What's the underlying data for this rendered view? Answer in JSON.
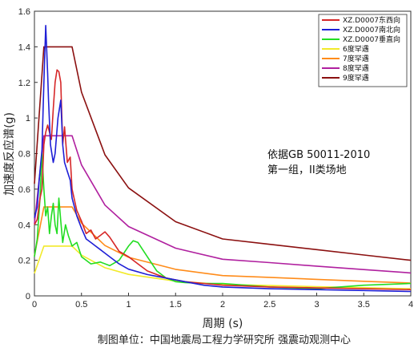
{
  "chart_data": {
    "type": "line",
    "xlabel": "周期 (s)",
    "ylabel": "加速度反应谱(g)",
    "xlim": [
      0,
      4
    ],
    "ylim": [
      0,
      1.6
    ],
    "x_ticks": [
      "0",
      "0.5",
      "1",
      "1.5",
      "2",
      "2.5",
      "3",
      "3.5",
      "4"
    ],
    "y_ticks": [
      "0",
      "0.2",
      "0.4",
      "0.6",
      "0.8",
      "1",
      "1.2",
      "1.4",
      "1.6"
    ],
    "grid": false,
    "legend_position": "top-right",
    "annotation": [
      "依据GB 50011-2010",
      "第一组，II类场地"
    ],
    "caption": "制图单位：中国地震局工程力学研究所 强震动观测中心",
    "series": [
      {
        "name": "XZ.D0007东西向",
        "color": "#d62728",
        "x": [
          0,
          0.03,
          0.06,
          0.08,
          0.1,
          0.12,
          0.14,
          0.16,
          0.18,
          0.2,
          0.22,
          0.24,
          0.26,
          0.28,
          0.3,
          0.32,
          0.35,
          0.38,
          0.4,
          0.45,
          0.5,
          0.55,
          0.6,
          0.65,
          0.7,
          0.75,
          0.8,
          0.9,
          1.0,
          1.1,
          1.2,
          1.3,
          1.4,
          1.5,
          1.6,
          1.8,
          2.0,
          2.5,
          3.0,
          3.5,
          4.0
        ],
        "values": [
          0.4,
          0.43,
          0.55,
          0.6,
          0.85,
          0.92,
          0.96,
          0.92,
          0.88,
          1.05,
          1.2,
          1.27,
          1.26,
          1.2,
          0.85,
          0.95,
          0.75,
          0.78,
          0.6,
          0.48,
          0.42,
          0.35,
          0.37,
          0.32,
          0.34,
          0.36,
          0.33,
          0.25,
          0.22,
          0.18,
          0.14,
          0.12,
          0.1,
          0.09,
          0.08,
          0.07,
          0.06,
          0.05,
          0.045,
          0.04,
          0.035
        ]
      },
      {
        "name": "XZ.D0007南北向",
        "color": "#1f1fd6",
        "x": [
          0,
          0.03,
          0.05,
          0.08,
          0.1,
          0.12,
          0.14,
          0.15,
          0.17,
          0.2,
          0.22,
          0.25,
          0.28,
          0.3,
          0.32,
          0.35,
          0.38,
          0.4,
          0.45,
          0.5,
          0.55,
          0.6,
          0.65,
          0.7,
          0.8,
          0.9,
          1.0,
          1.2,
          1.4,
          1.6,
          1.8,
          2.0,
          2.5,
          3.0,
          3.5,
          4.0
        ],
        "values": [
          0.44,
          0.5,
          0.65,
          0.82,
          1.2,
          1.52,
          1.25,
          1.1,
          0.85,
          0.75,
          0.8,
          1.0,
          1.1,
          0.85,
          0.75,
          0.7,
          0.65,
          0.55,
          0.45,
          0.38,
          0.32,
          0.3,
          0.28,
          0.26,
          0.22,
          0.18,
          0.15,
          0.12,
          0.1,
          0.08,
          0.06,
          0.05,
          0.04,
          0.035,
          0.03,
          0.025
        ]
      },
      {
        "name": "XZ.D0007垂直向",
        "color": "#22dd22",
        "x": [
          0,
          0.03,
          0.06,
          0.08,
          0.1,
          0.12,
          0.14,
          0.16,
          0.18,
          0.2,
          0.22,
          0.24,
          0.26,
          0.28,
          0.3,
          0.33,
          0.36,
          0.4,
          0.45,
          0.5,
          0.55,
          0.6,
          0.7,
          0.8,
          0.9,
          1.0,
          1.05,
          1.1,
          1.2,
          1.3,
          1.4,
          1.5,
          1.6,
          1.8,
          2.0,
          2.5,
          3.0,
          3.5,
          4.0
        ],
        "values": [
          0.22,
          0.32,
          0.55,
          0.8,
          0.6,
          0.45,
          0.5,
          0.35,
          0.45,
          0.52,
          0.4,
          0.35,
          0.55,
          0.42,
          0.3,
          0.4,
          0.34,
          0.28,
          0.3,
          0.22,
          0.2,
          0.18,
          0.19,
          0.17,
          0.2,
          0.28,
          0.31,
          0.3,
          0.22,
          0.14,
          0.1,
          0.08,
          0.075,
          0.07,
          0.07,
          0.05,
          0.04,
          0.06,
          0.07
        ]
      },
      {
        "name": "6度罕遇",
        "color": "#f2ea2a",
        "x": [
          0,
          0.1,
          0.4,
          0.5,
          0.75,
          1.0,
          1.5,
          2.0,
          2.5,
          3.0,
          3.5,
          4.0
        ],
        "values": [
          0.126,
          0.28,
          0.28,
          0.229,
          0.158,
          0.121,
          0.083,
          0.064,
          0.058,
          0.052,
          0.046,
          0.04
        ]
      },
      {
        "name": "7度罕遇",
        "color": "#ff8c1a",
        "x": [
          0,
          0.1,
          0.4,
          0.5,
          0.75,
          1.0,
          1.5,
          2.0,
          2.5,
          3.0,
          3.5,
          4.0
        ],
        "values": [
          0.225,
          0.5,
          0.5,
          0.409,
          0.283,
          0.217,
          0.149,
          0.114,
          0.104,
          0.093,
          0.082,
          0.072
        ]
      },
      {
        "name": "8度罕遇",
        "color": "#b0209f",
        "x": [
          0,
          0.1,
          0.4,
          0.5,
          0.75,
          1.0,
          1.5,
          2.0,
          2.5,
          3.0,
          3.5,
          4.0
        ],
        "values": [
          0.405,
          0.9,
          0.9,
          0.736,
          0.51,
          0.39,
          0.268,
          0.206,
          0.187,
          0.167,
          0.148,
          0.129
        ]
      },
      {
        "name": "9度罕遇",
        "color": "#8b1010",
        "x": [
          0,
          0.1,
          0.4,
          0.5,
          0.75,
          1.0,
          1.5,
          2.0,
          2.5,
          3.0,
          3.5,
          4.0
        ],
        "values": [
          0.63,
          1.4,
          1.4,
          1.145,
          0.793,
          0.607,
          0.417,
          0.32,
          0.29,
          0.26,
          0.23,
          0.2
        ]
      }
    ]
  }
}
